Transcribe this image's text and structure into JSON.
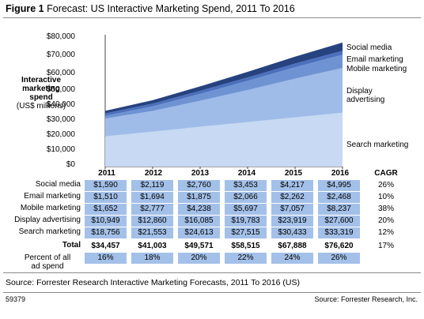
{
  "figure": {
    "number": "Figure 1",
    "title": "Forecast: US Interactive Marketing Spend, 2011 To 2016"
  },
  "y_axis": {
    "title_line1": "Interactive",
    "title_line2": "marketing",
    "title_line3": "spend",
    "title_line4": "(US$ millions)",
    "ticks": [
      "$80,000",
      "$70,000",
      "$60,000",
      "$50,000",
      "$40,000",
      "$30,000",
      "$20,000",
      "$10,000",
      "$0"
    ]
  },
  "series_labels": {
    "social": "Social media",
    "email": "Email marketing",
    "mobile": "Mobile marketing",
    "display_line1": "Display",
    "display_line2": "advertising",
    "search": "Search marketing"
  },
  "table": {
    "years": [
      "2011",
      "2012",
      "2013",
      "2014",
      "2015",
      "2016"
    ],
    "cagr_header": "CAGR",
    "rows": [
      {
        "label": "Social media",
        "values": [
          "$1,590",
          "$2,119",
          "$2,760",
          "$3,453",
          "$4,217",
          "$4,995"
        ],
        "cagr": "26%"
      },
      {
        "label": "Email marketing",
        "values": [
          "$1,510",
          "$1,694",
          "$1,875",
          "$2,066",
          "$2,262",
          "$2,468"
        ],
        "cagr": "10%"
      },
      {
        "label": "Mobile marketing",
        "values": [
          "$1,652",
          "$2,777",
          "$4,238",
          "$5,697",
          "$7,057",
          "$8,237"
        ],
        "cagr": "38%"
      },
      {
        "label": "Display advertising",
        "values": [
          "$10,949",
          "$12,860",
          "$16,085",
          "$19,783",
          "$23,919",
          "$27,600"
        ],
        "cagr": "20%"
      },
      {
        "label": "Search marketing",
        "values": [
          "$18,756",
          "$21,553",
          "$24,613",
          "$27,515",
          "$30,433",
          "$33,319"
        ],
        "cagr": "12%"
      }
    ],
    "total": {
      "label": "Total",
      "values": [
        "$34,457",
        "$41,003",
        "$49,571",
        "$58,515",
        "$67,888",
        "$76,620"
      ],
      "cagr": "17%"
    },
    "percent_label_line1": "Percent of all",
    "percent_label_line2": "ad spend",
    "percent_values": [
      "16%",
      "18%",
      "20%",
      "22%",
      "24%",
      "26%"
    ]
  },
  "source": "Source: Forrester Research Interactive Marketing Forecasts, 2011 To 2016 (US)",
  "figure_id": "59379",
  "credit": "Source: Forrester Research, Inc.",
  "colors": {
    "search": "#c7d9f3",
    "display": "#9fbce8",
    "mobile": "#6f93d2",
    "email": "#4c70bd",
    "social": "#26427f",
    "cell": "#a3c0e8"
  },
  "chart_data": {
    "type": "area",
    "stacked": true,
    "x": [
      2011,
      2012,
      2013,
      2014,
      2015,
      2016
    ],
    "ylim": [
      0,
      80000
    ],
    "series": [
      {
        "name": "Search marketing",
        "values": [
          18756,
          21553,
          24613,
          27515,
          30433,
          33319
        ]
      },
      {
        "name": "Display advertising",
        "values": [
          10949,
          12860,
          16085,
          19783,
          23919,
          27600
        ]
      },
      {
        "name": "Mobile marketing",
        "values": [
          1652,
          2777,
          4238,
          5697,
          7057,
          8237
        ]
      },
      {
        "name": "Email marketing",
        "values": [
          1510,
          1694,
          1875,
          2066,
          2262,
          2468
        ]
      },
      {
        "name": "Social media",
        "values": [
          1590,
          2119,
          2760,
          3453,
          4217,
          4995
        ]
      }
    ],
    "ytick_labels": [
      "$0",
      "$10,000",
      "$20,000",
      "$30,000",
      "$40,000",
      "$50,000",
      "$60,000",
      "$70,000",
      "$80,000"
    ]
  }
}
